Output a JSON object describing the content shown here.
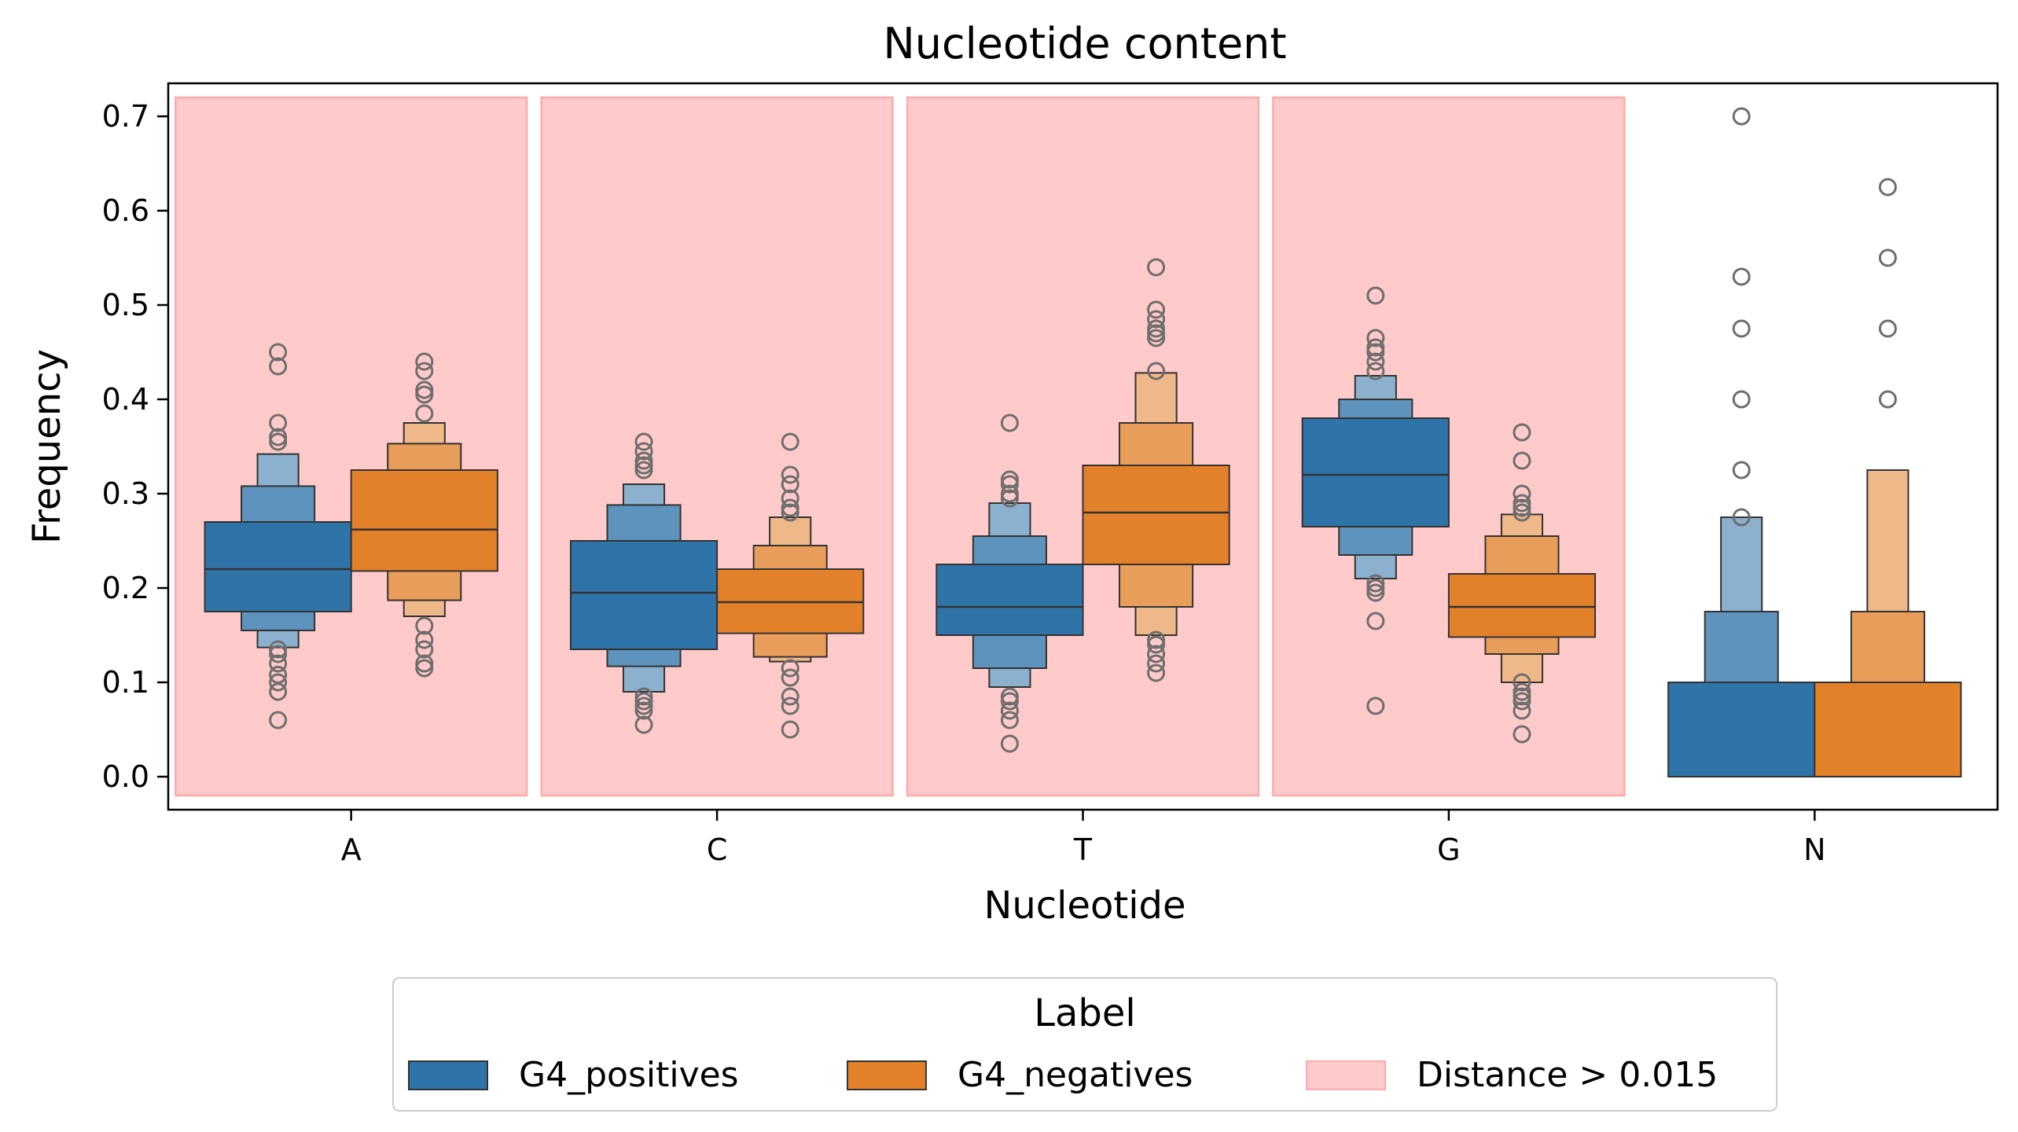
{
  "chart_data": {
    "type": "boxenplot",
    "title": "Nucleotide content",
    "xlabel": "Nucleotide",
    "ylabel": "Frequency",
    "categories": [
      "A",
      "C",
      "T",
      "G",
      "N"
    ],
    "ylim": [
      -0.035,
      0.735
    ],
    "yticks": [
      0.0,
      0.1,
      0.2,
      0.3,
      0.4,
      0.5,
      0.6,
      0.7
    ],
    "ytick_labels": [
      "0.0",
      "0.1",
      "0.2",
      "0.3",
      "0.4",
      "0.5",
      "0.6",
      "0.7"
    ],
    "grid": false,
    "legend": {
      "title": "Label",
      "placement": "bottom-center",
      "entries": [
        "G4_positives",
        "G4_negatives",
        "Distance > 0.015"
      ]
    },
    "highlight": {
      "name": "Distance > 0.015",
      "color": "#ffcaca",
      "edge_color": "#ffa9a9",
      "categories": [
        "A",
        "C",
        "T",
        "G"
      ],
      "y_range": [
        -0.02,
        0.72
      ]
    },
    "series": [
      {
        "name": "G4_positives",
        "color": "#2f74a9",
        "groups": [
          {
            "category": "A",
            "median": 0.22,
            "boxes": [
              [
                0.175,
                0.27
              ],
              [
                0.155,
                0.308
              ],
              [
                0.137,
                0.342
              ]
            ],
            "outliers": [
              0.45,
              0.435,
              0.375,
              0.36,
              0.355,
              0.135,
              0.13,
              0.12,
              0.108,
              0.1,
              0.09,
              0.06
            ]
          },
          {
            "category": "C",
            "median": 0.195,
            "boxes": [
              [
                0.135,
                0.25
              ],
              [
                0.117,
                0.288
              ],
              [
                0.09,
                0.31
              ]
            ],
            "outliers": [
              0.355,
              0.345,
              0.335,
              0.33,
              0.325,
              0.085,
              0.08,
              0.075,
              0.07,
              0.055
            ]
          },
          {
            "category": "T",
            "median": 0.18,
            "boxes": [
              [
                0.15,
                0.225
              ],
              [
                0.115,
                0.255
              ],
              [
                0.095,
                0.29
              ]
            ],
            "outliers": [
              0.375,
              0.315,
              0.31,
              0.3,
              0.295,
              0.085,
              0.08,
              0.07,
              0.06,
              0.035
            ]
          },
          {
            "category": "G",
            "median": 0.32,
            "boxes": [
              [
                0.265,
                0.38
              ],
              [
                0.235,
                0.4
              ],
              [
                0.21,
                0.425
              ]
            ],
            "outliers": [
              0.51,
              0.465,
              0.455,
              0.45,
              0.44,
              0.43,
              0.205,
              0.2,
              0.195,
              0.165,
              0.075
            ]
          },
          {
            "category": "N",
            "median": null,
            "boxes": [
              [
                0.0,
                0.1
              ],
              [
                0.0,
                0.175
              ],
              [
                0.0,
                0.275
              ]
            ],
            "outliers": [
              0.7,
              0.53,
              0.475,
              0.4,
              0.325,
              0.275
            ]
          }
        ]
      },
      {
        "name": "G4_negatives",
        "color": "#e3812b",
        "groups": [
          {
            "category": "A",
            "median": 0.262,
            "boxes": [
              [
                0.218,
                0.325
              ],
              [
                0.187,
                0.353
              ],
              [
                0.17,
                0.375
              ]
            ],
            "outliers": [
              0.44,
              0.43,
              0.41,
              0.405,
              0.385,
              0.16,
              0.145,
              0.135,
              0.12,
              0.115
            ]
          },
          {
            "category": "C",
            "median": 0.185,
            "boxes": [
              [
                0.152,
                0.22
              ],
              [
                0.127,
                0.245
              ],
              [
                0.122,
                0.275
              ]
            ],
            "outliers": [
              0.355,
              0.32,
              0.31,
              0.295,
              0.285,
              0.28,
              0.115,
              0.105,
              0.085,
              0.075,
              0.05
            ]
          },
          {
            "category": "T",
            "median": 0.28,
            "boxes": [
              [
                0.225,
                0.33
              ],
              [
                0.18,
                0.375
              ],
              [
                0.15,
                0.428
              ]
            ],
            "outliers": [
              0.54,
              0.495,
              0.485,
              0.475,
              0.47,
              0.465,
              0.43,
              0.145,
              0.14,
              0.13,
              0.12,
              0.11
            ]
          },
          {
            "category": "G",
            "median": 0.18,
            "boxes": [
              [
                0.148,
                0.215
              ],
              [
                0.13,
                0.255
              ],
              [
                0.1,
                0.278
              ]
            ],
            "outliers": [
              0.365,
              0.335,
              0.3,
              0.29,
              0.285,
              0.28,
              0.1,
              0.09,
              0.085,
              0.08,
              0.07,
              0.045
            ]
          },
          {
            "category": "N",
            "median": null,
            "boxes": [
              [
                0.0,
                0.1
              ],
              [
                0.0,
                0.175
              ],
              [
                0.0,
                0.325
              ]
            ],
            "outliers": [
              0.625,
              0.55,
              0.475,
              0.4
            ]
          }
        ]
      }
    ]
  }
}
